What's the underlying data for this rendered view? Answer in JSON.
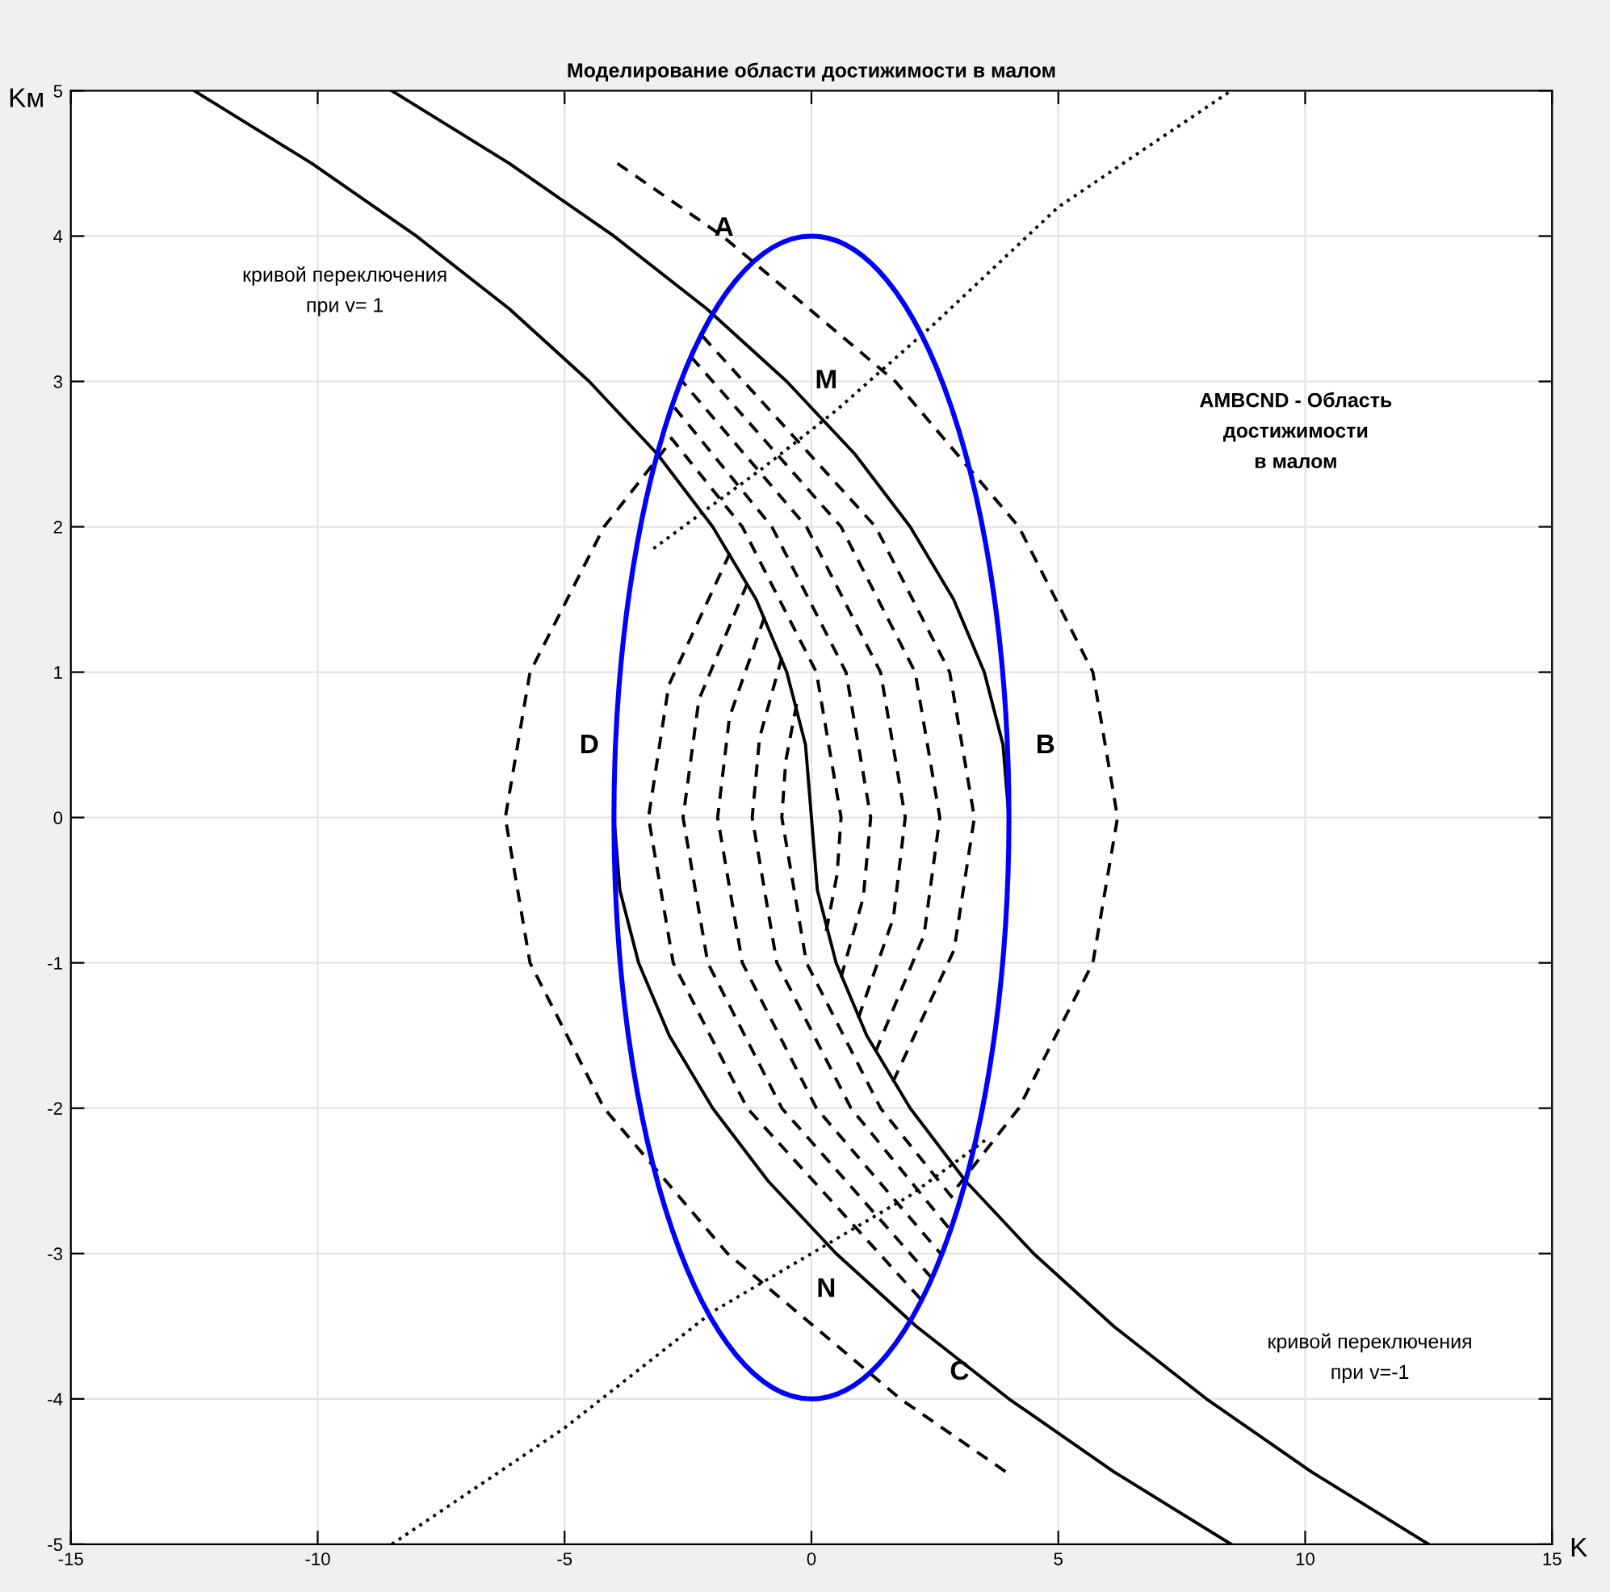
{
  "chart_data": {
    "type": "line",
    "title": "Моделирование области достижимости в малом",
    "xlabel": "K",
    "ylabel": "Kм",
    "xlim": [
      -15,
      15
    ],
    "ylim": [
      -5,
      5
    ],
    "xticks": [
      -15,
      -10,
      -5,
      0,
      5,
      10,
      15
    ],
    "yticks": [
      -5,
      -4,
      -3,
      -2,
      -1,
      0,
      1,
      2,
      3,
      4,
      5
    ],
    "grid": true,
    "legend": false,
    "marker": "none",
    "series": [
      {
        "color": "#000000",
        "line_style": "solid",
        "x": [
          4,
          3.88,
          3.5,
          2.88,
          2,
          0.88,
          -0.5,
          -2.12,
          -4,
          -6.12,
          -8.5
        ],
        "values": [
          0,
          0.5,
          1,
          1.5,
          2,
          2.5,
          3,
          3.5,
          4,
          4.5,
          5
        ]
      },
      {
        "color": "#000000",
        "line_style": "solid",
        "x": [
          -4,
          -3.88,
          -3.5,
          -2.88,
          -2,
          -0.88,
          0.5,
          2.12,
          4,
          6.12,
          8.5
        ],
        "values": [
          0,
          -0.5,
          -1,
          -1.5,
          -2,
          -2.5,
          -3,
          -3.5,
          -4,
          -4.5,
          -5
        ]
      },
      {
        "color": "#000000",
        "line_style": "solid",
        "x": [
          -12.5,
          -10.12,
          -8,
          -6.12,
          -4.5,
          -3.12,
          -2,
          -1.12,
          -0.5,
          -0.12,
          0,
          0.12,
          0.5,
          1.12,
          2,
          3.12,
          4.5,
          6.12,
          8,
          10.12,
          12.5
        ],
        "values": [
          5,
          4.5,
          4,
          3.5,
          3,
          2.5,
          2,
          1.5,
          1,
          0.5,
          0,
          -0.5,
          -1,
          -1.5,
          -2,
          -2.5,
          -3,
          -3.5,
          -4,
          -4.5,
          -5
        ]
      },
      {
        "color": "#000000",
        "line_style": "dashed",
        "x": [
          -3.93,
          -1.8,
          1.7,
          4.2,
          5.7,
          6.2,
          5.7,
          4.2,
          2.82
        ],
        "values": [
          4.5,
          4,
          3,
          2,
          1,
          0,
          -1,
          -2,
          -2.6
        ]
      },
      {
        "color": "#000000",
        "line_style": "dashed",
        "x": [
          3.93,
          1.8,
          -1.7,
          -4.2,
          -5.7,
          -6.2,
          -5.7,
          -4.2,
          -2.82
        ],
        "values": [
          -4.5,
          -4,
          -3,
          -2,
          -1,
          0,
          1,
          2,
          2.6
        ]
      },
      {
        "color": "#000000",
        "line_style": "dotted",
        "x": [
          -3.2,
          -1,
          0.5,
          2.5,
          5,
          8.5
        ],
        "values": [
          1.85,
          2.4,
          2.8,
          3.4,
          4.2,
          5
        ]
      },
      {
        "color": "#000000",
        "line_style": "dotted",
        "x": [
          -8.5,
          -5,
          -2,
          0.5,
          2,
          3.6
        ],
        "values": [
          -5,
          -4.2,
          -3.4,
          -2.9,
          -2.6,
          -2.2
        ]
      },
      {
        "color": "#000000",
        "line_style": "dashed",
        "x": [
          0.3,
          0.52,
          0.6,
          0.1,
          -1.4,
          -2.98
        ],
        "values": [
          -0.78,
          -0.39,
          0,
          1,
          2,
          2.67
        ]
      },
      {
        "color": "#000000",
        "line_style": "dashed",
        "x": [
          0.6,
          1.05,
          1.2,
          0.7,
          -0.8,
          -2.82
        ],
        "values": [
          -1.1,
          -0.55,
          0,
          1,
          2,
          2.84
        ]
      },
      {
        "color": "#000000",
        "line_style": "dashed",
        "x": [
          0.95,
          1.66,
          1.9,
          1.4,
          -0.1,
          -2.64
        ],
        "values": [
          -1.38,
          -0.69,
          0,
          1,
          2,
          3.01
        ]
      },
      {
        "color": "#000000",
        "line_style": "dashed",
        "x": [
          1.3,
          2.28,
          2.6,
          2.1,
          0.6,
          -2.44
        ],
        "values": [
          -1.61,
          -0.81,
          0,
          1,
          2,
          3.17
        ]
      },
      {
        "color": "#000000",
        "line_style": "dashed",
        "x": [
          1.65,
          2.89,
          3.3,
          2.8,
          1.3,
          -2.23
        ],
        "values": [
          -1.82,
          -0.91,
          0,
          1,
          2,
          3.32
        ]
      },
      {
        "color": "#000000",
        "line_style": "dashed",
        "x": [
          -0.3,
          -0.52,
          -0.6,
          -0.1,
          1.4,
          2.98
        ],
        "values": [
          0.78,
          0.39,
          0,
          -1,
          -2,
          -2.67
        ]
      },
      {
        "color": "#000000",
        "line_style": "dashed",
        "x": [
          -0.6,
          -1.05,
          -1.2,
          -0.7,
          0.8,
          2.82
        ],
        "values": [
          1.1,
          0.55,
          0,
          -1,
          -2,
          -2.84
        ]
      },
      {
        "color": "#000000",
        "line_style": "dashed",
        "x": [
          -0.95,
          -1.66,
          -1.9,
          -1.4,
          0.1,
          2.64
        ],
        "values": [
          1.38,
          0.69,
          0,
          -1,
          -2,
          -3.01
        ]
      },
      {
        "color": "#000000",
        "line_style": "dashed",
        "x": [
          -1.3,
          -2.28,
          -2.6,
          -2.1,
          -0.6,
          2.44
        ],
        "values": [
          1.61,
          0.81,
          0,
          -1,
          -2,
          -3.17
        ]
      },
      {
        "color": "#000000",
        "line_style": "dashed",
        "x": [
          -1.65,
          -2.89,
          -3.3,
          -2.8,
          -1.3,
          2.23
        ],
        "values": [
          1.82,
          0.91,
          0,
          -1,
          -2,
          -3.32
        ]
      }
    ],
    "annotations": [
      "A",
      "M",
      "B",
      "D",
      "N",
      "C",
      "кривой переключения\nпри v= 1",
      "кривой переключения\nпри v=-1",
      "AMBCND - Область\nдостижимости\nв малом"
    ]
  }
}
